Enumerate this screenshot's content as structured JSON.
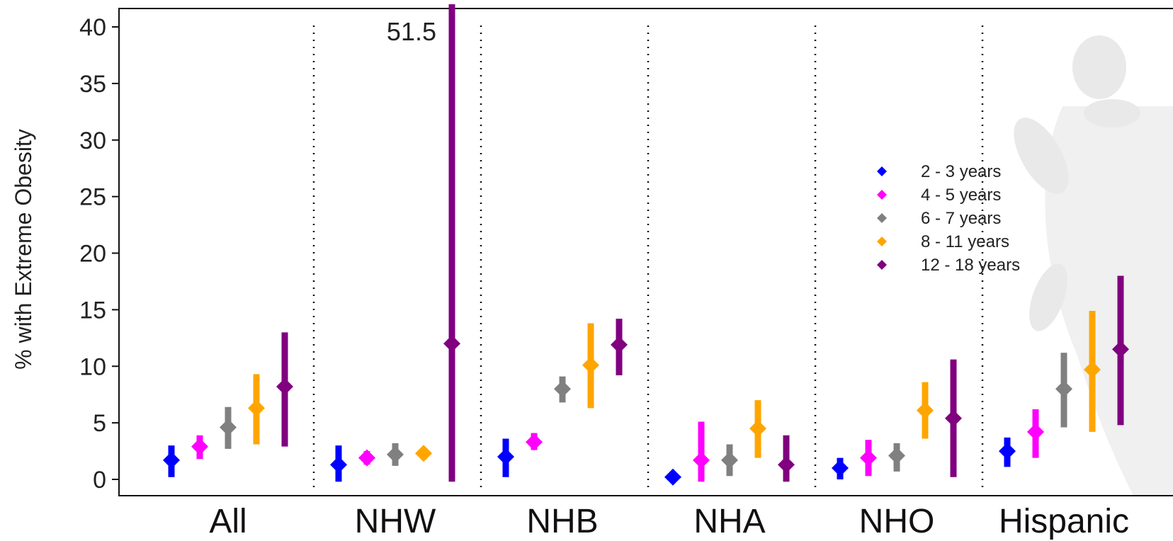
{
  "chart_data": {
    "type": "scatter",
    "subtype": "point-range by group",
    "ylabel": "% with Extreme Obesity",
    "xlabel": "",
    "ylim": [
      -1.5,
      42
    ],
    "yticks": [
      0,
      5,
      10,
      15,
      20,
      25,
      30,
      35,
      40
    ],
    "categories": [
      "All",
      "NHW",
      "NHB",
      "NHA",
      "NHO",
      "Hispanic"
    ],
    "group_separators": "dotted",
    "grid": false,
    "legend": {
      "position": "right",
      "marker": "diamond"
    },
    "annotations": [
      {
        "text": "51.5",
        "category": "NHW",
        "series": "12 - 18 years",
        "note_value": 51.5
      }
    ],
    "series": [
      {
        "name": "2 - 3 years",
        "color": "#0000ff",
        "estimates": [
          1.7,
          1.3,
          2.0,
          0.2,
          1.0,
          2.5
        ],
        "lower": [
          0.2,
          -0.2,
          0.2,
          0.0,
          0.0,
          1.1
        ],
        "upper": [
          3.0,
          3.0,
          3.6,
          0.4,
          1.9,
          3.7
        ]
      },
      {
        "name": "4 - 5 years",
        "color": "#ff00ff",
        "estimates": [
          2.9,
          1.9,
          3.3,
          1.7,
          1.9,
          4.2
        ],
        "lower": [
          1.8,
          1.3,
          2.6,
          -0.2,
          0.3,
          1.9
        ],
        "upper": [
          3.9,
          2.5,
          4.1,
          5.1,
          3.5,
          6.2
        ]
      },
      {
        "name": "6 - 7 years",
        "color": "#808080",
        "estimates": [
          4.6,
          2.2,
          8.0,
          1.7,
          2.1,
          8.0
        ],
        "lower": [
          2.7,
          1.2,
          6.8,
          0.3,
          0.7,
          4.6
        ],
        "upper": [
          6.4,
          3.2,
          9.1,
          3.1,
          3.2,
          11.2
        ]
      },
      {
        "name": "8 - 11 years",
        "color": "#ffa500",
        "estimates": [
          6.3,
          2.3,
          10.1,
          4.5,
          6.1,
          9.7
        ],
        "lower": [
          3.1,
          1.8,
          6.3,
          1.9,
          3.6,
          4.2
        ],
        "upper": [
          9.3,
          2.8,
          13.8,
          7.0,
          8.6,
          14.9
        ]
      },
      {
        "name": "12 - 18 years",
        "color": "#800080",
        "estimates": [
          8.2,
          12.0,
          11.9,
          1.3,
          5.4,
          11.5
        ],
        "lower": [
          2.9,
          -0.2,
          9.2,
          -0.2,
          0.2,
          4.8
        ],
        "upper": [
          13.0,
          42.0,
          14.2,
          3.9,
          10.6,
          18.0
        ]
      }
    ]
  }
}
